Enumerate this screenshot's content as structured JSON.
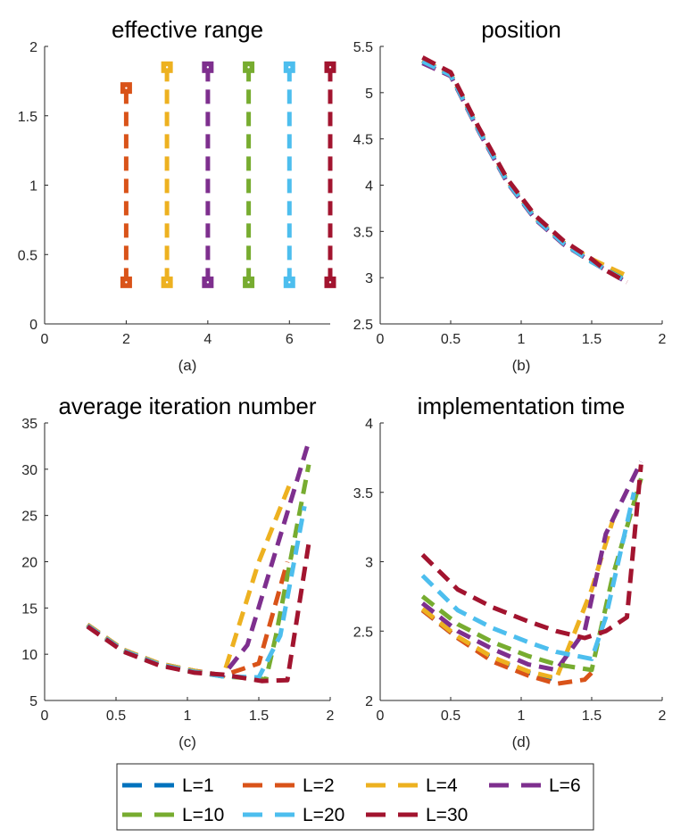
{
  "figure": {
    "legend": [
      {
        "label": "L=1",
        "color": "#0072BD"
      },
      {
        "label": "L=2",
        "color": "#D95319"
      },
      {
        "label": "L=4",
        "color": "#EDB120"
      },
      {
        "label": "L=6",
        "color": "#7E2F8E"
      },
      {
        "label": "L=10",
        "color": "#77AC30"
      },
      {
        "label": "L=20",
        "color": "#4DBEEE"
      },
      {
        "label": "L=30",
        "color": "#A2142F"
      }
    ]
  },
  "chart_data": [
    {
      "type": "line",
      "id": "a",
      "title": "effective range",
      "caption": "(a)",
      "xlim": [
        0,
        7
      ],
      "ylim": [
        0,
        2
      ],
      "xticks": [
        0,
        2,
        4,
        6
      ],
      "yticks": [
        0,
        0.5,
        1,
        1.5,
        2
      ],
      "xtick_labels": [
        "0",
        "2",
        "4",
        "6"
      ],
      "ytick_labels": [
        "0",
        "0.5",
        "1",
        "1.5",
        "2"
      ],
      "series": [
        {
          "name": "L=2",
          "color": "#D95319",
          "x": [
            2,
            2
          ],
          "y": [
            0.3,
            1.7
          ]
        },
        {
          "name": "L=4",
          "color": "#EDB120",
          "x": [
            3,
            3
          ],
          "y": [
            0.3,
            1.85
          ]
        },
        {
          "name": "L=6",
          "color": "#7E2F8E",
          "x": [
            4,
            4
          ],
          "y": [
            0.3,
            1.85
          ]
        },
        {
          "name": "L=10",
          "color": "#77AC30",
          "x": [
            5,
            5
          ],
          "y": [
            0.3,
            1.85
          ]
        },
        {
          "name": "L=20",
          "color": "#4DBEEE",
          "x": [
            6,
            6
          ],
          "y": [
            0.3,
            1.85
          ]
        },
        {
          "name": "L=30",
          "color": "#A2142F",
          "x": [
            7,
            7
          ],
          "y": [
            0.3,
            1.85
          ]
        }
      ]
    },
    {
      "type": "line",
      "id": "b",
      "title": "position",
      "caption": "(b)",
      "xlim": [
        0,
        2
      ],
      "ylim": [
        2.5,
        5.5
      ],
      "xticks": [
        0,
        0.5,
        1,
        1.5,
        2
      ],
      "yticks": [
        2.5,
        3,
        3.5,
        4,
        4.5,
        5,
        5.5
      ],
      "xtick_labels": [
        "0",
        "0.5",
        "1",
        "1.5",
        "2"
      ],
      "ytick_labels": [
        "2.5",
        "3",
        "3.5",
        "4",
        "4.5",
        "5",
        "5.5"
      ],
      "series": [
        {
          "name": "L=1",
          "color": "#0072BD",
          "x": [
            0.3,
            0.5,
            0.7,
            0.9,
            1.1,
            1.3,
            1.5,
            1.7
          ],
          "y": [
            5.35,
            5.2,
            4.6,
            4.05,
            3.65,
            3.38,
            3.18,
            3.02
          ]
        },
        {
          "name": "L=2",
          "color": "#D95319",
          "x": [
            0.3,
            0.5,
            0.7,
            0.9,
            1.1,
            1.3,
            1.5,
            1.6,
            1.7
          ],
          "y": [
            5.35,
            5.2,
            4.6,
            4.05,
            3.65,
            3.38,
            3.2,
            3.12,
            3.05
          ]
        },
        {
          "name": "L=4",
          "color": "#EDB120",
          "x": [
            0.3,
            0.5,
            0.7,
            0.9,
            1.1,
            1.3,
            1.5,
            1.75
          ],
          "y": [
            5.35,
            5.2,
            4.6,
            4.05,
            3.65,
            3.38,
            3.2,
            3.02
          ]
        },
        {
          "name": "L=6",
          "color": "#7E2F8E",
          "x": [
            0.3,
            0.5,
            0.7,
            0.9,
            1.1,
            1.3,
            1.5,
            1.75
          ],
          "y": [
            5.32,
            5.18,
            4.58,
            4.03,
            3.63,
            3.36,
            3.17,
            2.95
          ]
        },
        {
          "name": "L=10",
          "color": "#77AC30",
          "x": [
            0.3,
            0.5,
            0.7,
            0.9,
            1.1,
            1.3,
            1.5,
            1.75
          ],
          "y": [
            5.34,
            5.19,
            4.59,
            4.04,
            3.64,
            3.37,
            3.17,
            2.97
          ]
        },
        {
          "name": "L=20",
          "color": "#4DBEEE",
          "x": [
            0.3,
            0.5,
            0.7,
            0.9,
            1.1,
            1.3,
            1.5,
            1.75
          ],
          "y": [
            5.34,
            5.19,
            4.59,
            4.04,
            3.64,
            3.37,
            3.17,
            2.96
          ]
        },
        {
          "name": "L=30",
          "color": "#A2142F",
          "x": [
            0.3,
            0.5,
            0.7,
            0.9,
            1.1,
            1.3,
            1.5,
            1.6,
            1.75
          ],
          "y": [
            5.38,
            5.22,
            4.62,
            4.07,
            3.67,
            3.4,
            3.2,
            3.08,
            2.95
          ]
        }
      ]
    },
    {
      "type": "line",
      "id": "c",
      "title": "average iteration number",
      "caption": "(c)",
      "xlim": [
        0,
        2
      ],
      "ylim": [
        5,
        35
      ],
      "xticks": [
        0,
        0.5,
        1,
        1.5,
        2
      ],
      "yticks": [
        5,
        10,
        15,
        20,
        25,
        30,
        35
      ],
      "xtick_labels": [
        "0",
        "0.5",
        "1",
        "1.5",
        "2"
      ],
      "ytick_labels": [
        "5",
        "10",
        "15",
        "20",
        "25",
        "30",
        "35"
      ],
      "series": [
        {
          "name": "L=1",
          "color": "#0072BD",
          "x": [
            0.3,
            0.55,
            0.8,
            1.05,
            1.25
          ],
          "y": [
            13.2,
            10.5,
            9.0,
            8.2,
            7.7
          ]
        },
        {
          "name": "L=2",
          "color": "#D95319",
          "x": [
            0.3,
            0.55,
            0.8,
            1.05,
            1.25,
            1.5,
            1.7
          ],
          "y": [
            13.2,
            10.5,
            9.0,
            8.2,
            7.7,
            9.0,
            20.0
          ]
        },
        {
          "name": "L=4",
          "color": "#EDB120",
          "x": [
            0.3,
            0.55,
            0.8,
            1.05,
            1.25,
            1.5,
            1.72
          ],
          "y": [
            13.2,
            10.5,
            9.0,
            8.2,
            7.6,
            20.0,
            28.5
          ]
        },
        {
          "name": "L=6",
          "color": "#7E2F8E",
          "x": [
            0.3,
            0.55,
            0.8,
            1.05,
            1.25,
            1.42,
            1.85
          ],
          "y": [
            13.1,
            10.4,
            8.9,
            8.1,
            7.7,
            11.0,
            33.0
          ]
        },
        {
          "name": "L=10",
          "color": "#77AC30",
          "x": [
            0.3,
            0.55,
            0.8,
            1.05,
            1.25,
            1.55,
            1.62,
            1.85
          ],
          "y": [
            13.1,
            10.4,
            8.9,
            8.1,
            7.6,
            7.3,
            12.0,
            30.5
          ]
        },
        {
          "name": "L=20",
          "color": "#4DBEEE",
          "x": [
            0.3,
            0.55,
            0.8,
            1.05,
            1.25,
            1.5,
            1.65,
            1.82
          ],
          "y": [
            13.1,
            10.4,
            8.9,
            8.1,
            7.6,
            7.5,
            12.0,
            26.0
          ]
        },
        {
          "name": "L=30",
          "color": "#A2142F",
          "x": [
            0.3,
            0.55,
            0.8,
            1.05,
            1.25,
            1.52,
            1.7,
            1.85
          ],
          "y": [
            13.0,
            10.3,
            8.8,
            8.0,
            7.8,
            7.1,
            7.2,
            22.0
          ]
        }
      ]
    },
    {
      "type": "line",
      "id": "d",
      "title": "implementation time",
      "caption": "(d)",
      "xlim": [
        0,
        2
      ],
      "ylim": [
        2,
        4
      ],
      "xticks": [
        0,
        0.5,
        1,
        1.5,
        2
      ],
      "yticks": [
        2,
        2.5,
        3,
        3.5,
        4
      ],
      "xtick_labels": [
        "0",
        "0.5",
        "1",
        "1.5",
        "2"
      ],
      "ytick_labels": [
        "2",
        "2.5",
        "3",
        "3.5",
        "4"
      ],
      "series": [
        {
          "name": "L=1",
          "color": "#0072BD",
          "x": [
            0.3,
            0.55,
            0.8,
            1.05,
            1.25
          ],
          "y": [
            2.65,
            2.45,
            2.3,
            2.2,
            2.15
          ]
        },
        {
          "name": "L=2",
          "color": "#D95319",
          "x": [
            0.3,
            0.55,
            0.8,
            1.05,
            1.25,
            1.45,
            1.5
          ],
          "y": [
            2.65,
            2.45,
            2.28,
            2.18,
            2.12,
            2.15,
            2.2
          ]
        },
        {
          "name": "L=4",
          "color": "#EDB120",
          "x": [
            0.3,
            0.55,
            0.8,
            1.05,
            1.25,
            1.5,
            1.65
          ],
          "y": [
            2.66,
            2.46,
            2.31,
            2.21,
            2.16,
            2.8,
            3.3
          ]
        },
        {
          "name": "L=6",
          "color": "#7E2F8E",
          "x": [
            0.3,
            0.55,
            0.8,
            1.05,
            1.25,
            1.45,
            1.6,
            1.85
          ],
          "y": [
            2.7,
            2.5,
            2.37,
            2.26,
            2.22,
            2.5,
            3.2,
            3.72
          ]
        },
        {
          "name": "L=10",
          "color": "#77AC30",
          "x": [
            0.3,
            0.55,
            0.8,
            1.05,
            1.25,
            1.5,
            1.65,
            1.85
          ],
          "y": [
            2.75,
            2.55,
            2.42,
            2.32,
            2.26,
            2.22,
            2.9,
            3.6
          ]
        },
        {
          "name": "L=20",
          "color": "#4DBEEE",
          "x": [
            0.3,
            0.55,
            0.8,
            1.05,
            1.25,
            1.5,
            1.6,
            1.8
          ],
          "y": [
            2.9,
            2.65,
            2.52,
            2.42,
            2.35,
            2.3,
            2.6,
            3.5
          ]
        },
        {
          "name": "L=30",
          "color": "#A2142F",
          "x": [
            0.3,
            0.55,
            0.8,
            1.05,
            1.25,
            1.45,
            1.6,
            1.75,
            1.85
          ],
          "y": [
            3.05,
            2.8,
            2.67,
            2.57,
            2.5,
            2.45,
            2.5,
            2.6,
            3.7
          ]
        }
      ]
    }
  ]
}
